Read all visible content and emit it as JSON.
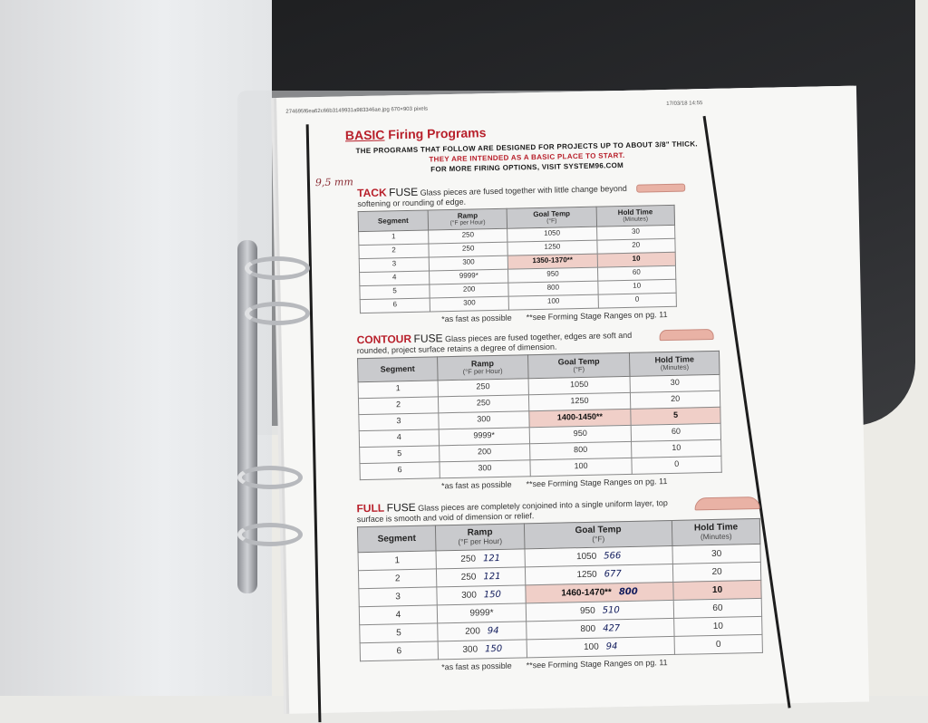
{
  "header": {
    "file_info": "274695f6ea62c66b3149931a983346ae.jpg 670×903 pixels",
    "timestamp": "17/03/18 14:55",
    "title_keyword": "BASIC",
    "title_rest": "Firing Programs",
    "intro_black": "THE PROGRAMS THAT FOLLOW ARE DESIGNED FOR PROJECTS UP TO ABOUT 3/8\" THICK.",
    "intro_red": "THEY ARE INTENDED AS A BASIC PLACE TO START.",
    "intro_end": "FOR MORE FIRING OPTIONS, VISIT SYSTEM96.COM",
    "handwritten_note": "9,5 mm"
  },
  "columns": [
    {
      "label": "Segment",
      "sub": ""
    },
    {
      "label": "Ramp",
      "sub": "(°F per Hour)"
    },
    {
      "label": "Goal Temp",
      "sub": "(°F)"
    },
    {
      "label": "Hold Time",
      "sub": "(Minutes)"
    }
  ],
  "footnotes": {
    "asterisk": "*as fast as possible",
    "double": "**see Forming Stage Ranges on pg. 11"
  },
  "colors": {
    "accent_red": "#b8202b",
    "highlight": "#f0cfc8",
    "header_gray": "#c9cacd",
    "ink_blue": "#101b5c"
  },
  "sections": [
    {
      "keyword": "TACK",
      "fuse": "FUSE",
      "description": "Glass pieces are fused together with little change beyond softening or rounding of edge.",
      "rows": [
        [
          "1",
          "250",
          "1050",
          "30"
        ],
        [
          "2",
          "250",
          "1250",
          "20"
        ],
        [
          "3",
          "300",
          "1350-1370**",
          "10"
        ],
        [
          "4",
          "9999*",
          "950",
          "60"
        ],
        [
          "5",
          "200",
          "800",
          "10"
        ],
        [
          "6",
          "300",
          "100",
          "0"
        ]
      ]
    },
    {
      "keyword": "CONTOUR",
      "fuse": "FUSE",
      "description": "Glass pieces are fused together, edges are soft and rounded, project surface retains a degree of dimension.",
      "rows": [
        [
          "1",
          "250",
          "1050",
          "30"
        ],
        [
          "2",
          "250",
          "1250",
          "20"
        ],
        [
          "3",
          "300",
          "1400-1450**",
          "5"
        ],
        [
          "4",
          "9999*",
          "950",
          "60"
        ],
        [
          "5",
          "200",
          "800",
          "10"
        ],
        [
          "6",
          "300",
          "100",
          "0"
        ]
      ]
    },
    {
      "keyword": "FULL",
      "fuse": "FUSE",
      "description": "Glass pieces are completely conjoined into a single uniform layer, top surface is smooth and void of dimension or relief.",
      "rows": [
        [
          "1",
          "250",
          "1050",
          "30"
        ],
        [
          "2",
          "250",
          "1250",
          "20"
        ],
        [
          "3",
          "300",
          "1460-1470**",
          "10"
        ],
        [
          "4",
          "9999*",
          "950",
          "60"
        ],
        [
          "5",
          "200",
          "800",
          "10"
        ],
        [
          "6",
          "300",
          "100",
          "0"
        ]
      ],
      "handwritten_ramp": [
        "121",
        "121",
        "150",
        "",
        "94",
        "150"
      ],
      "handwritten_temp": [
        "566",
        "677",
        "800",
        "510",
        "427",
        "94"
      ]
    }
  ]
}
